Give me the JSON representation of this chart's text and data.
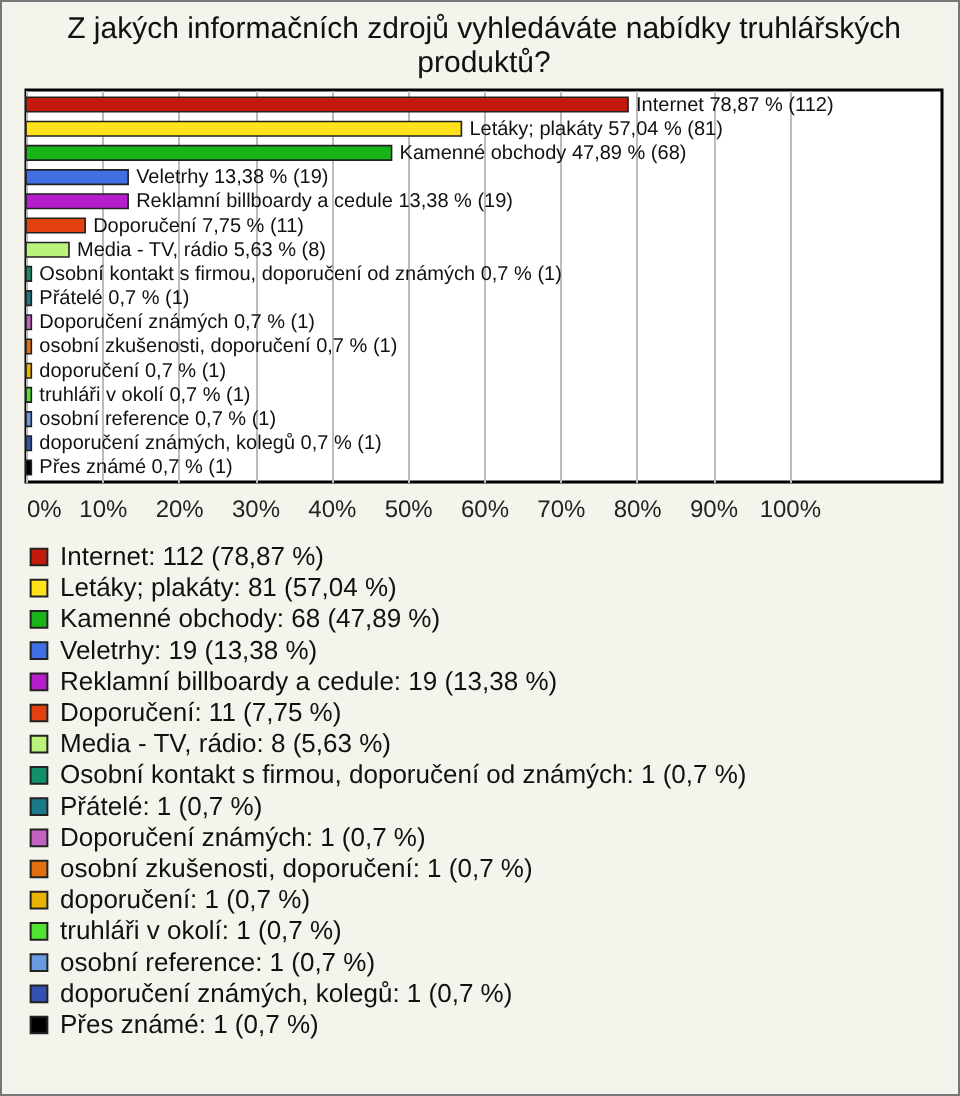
{
  "chart_data": {
    "type": "bar",
    "orientation": "horizontal",
    "title": "Z jakých informačních zdrojů vyhledáváte nabídky truhlářských produktů?",
    "categories": [
      null,
      null,
      null,
      null,
      null,
      null,
      null,
      null,
      null,
      null,
      null,
      null,
      null,
      null,
      null,
      null
    ],
    "series": [
      {
        "name": "Internet: 112 (78,87 %)",
        "color": "#c41a0e",
        "values": [
          78.87,
          null,
          null,
          null,
          null,
          null,
          null,
          null,
          null,
          null,
          null,
          null,
          null,
          null,
          null,
          null
        ],
        "value_labels": [
          "Internet 78,87 % (112)",
          null,
          null,
          null,
          null,
          null,
          null,
          null,
          null,
          null,
          null,
          null,
          null,
          null,
          null,
          null
        ]
      },
      {
        "name": "Letáky; plakáty: 81 (57,04 %)",
        "color": "#ffe21a",
        "values": [
          null,
          57.04,
          null,
          null,
          null,
          null,
          null,
          null,
          null,
          null,
          null,
          null,
          null,
          null,
          null,
          null
        ],
        "value_labels": [
          null,
          "Letáky; plakáty 57,04 % (81)",
          null,
          null,
          null,
          null,
          null,
          null,
          null,
          null,
          null,
          null,
          null,
          null,
          null,
          null
        ]
      },
      {
        "name": "Kamenné obchody: 68 (47,89 %)",
        "color": "#19b419",
        "values": [
          null,
          null,
          47.89,
          null,
          null,
          null,
          null,
          null,
          null,
          null,
          null,
          null,
          null,
          null,
          null,
          null
        ],
        "value_labels": [
          null,
          null,
          "Kamenné obchody 47,89 % (68)",
          null,
          null,
          null,
          null,
          null,
          null,
          null,
          null,
          null,
          null,
          null,
          null,
          null
        ]
      },
      {
        "name": "Veletrhy: 19 (13,38 %)",
        "color": "#3f6fe3",
        "values": [
          null,
          null,
          null,
          13.38,
          null,
          null,
          null,
          null,
          null,
          null,
          null,
          null,
          null,
          null,
          null,
          null
        ],
        "value_labels": [
          null,
          null,
          null,
          "Veletrhy 13,38 % (19)",
          null,
          null,
          null,
          null,
          null,
          null,
          null,
          null,
          null,
          null,
          null,
          null
        ]
      },
      {
        "name": "Reklamní billboardy a cedule: 19 (13,38 %)",
        "color": "#b61ecb",
        "values": [
          null,
          null,
          null,
          null,
          13.38,
          null,
          null,
          null,
          null,
          null,
          null,
          null,
          null,
          null,
          null,
          null
        ],
        "value_labels": [
          null,
          null,
          null,
          null,
          "Reklamní billboardy a cedule 13,38 % (19)",
          null,
          null,
          null,
          null,
          null,
          null,
          null,
          null,
          null,
          null,
          null
        ]
      },
      {
        "name": "Doporučení: 11 (7,75 %)",
        "color": "#e2400f",
        "values": [
          null,
          null,
          null,
          null,
          null,
          7.75,
          null,
          null,
          null,
          null,
          null,
          null,
          null,
          null,
          null,
          null
        ],
        "value_labels": [
          null,
          null,
          null,
          null,
          null,
          "Doporučení 7,75 % (11)",
          null,
          null,
          null,
          null,
          null,
          null,
          null,
          null,
          null,
          null
        ]
      },
      {
        "name": "Media - TV, rádio: 8 (5,63 %)",
        "color": "#baf27c",
        "values": [
          null,
          null,
          null,
          null,
          null,
          null,
          5.63,
          null,
          null,
          null,
          null,
          null,
          null,
          null,
          null,
          null
        ],
        "value_labels": [
          null,
          null,
          null,
          null,
          null,
          null,
          "Media - TV, rádio 5,63 % (8)",
          null,
          null,
          null,
          null,
          null,
          null,
          null,
          null,
          null
        ]
      },
      {
        "name": "Osobní kontakt s firmou, doporučení od známých: 1 (0,7 %)",
        "color": "#12906a",
        "values": [
          null,
          null,
          null,
          null,
          null,
          null,
          null,
          0.7,
          null,
          null,
          null,
          null,
          null,
          null,
          null,
          null
        ],
        "value_labels": [
          null,
          null,
          null,
          null,
          null,
          null,
          null,
          "Osobní kontakt s firmou, doporučení od známých 0,7 % (1)",
          null,
          null,
          null,
          null,
          null,
          null,
          null,
          null
        ]
      },
      {
        "name": "Přátelé: 1 (0,7 %)",
        "color": "#1a7a8a",
        "values": [
          null,
          null,
          null,
          null,
          null,
          null,
          null,
          null,
          0.7,
          null,
          null,
          null,
          null,
          null,
          null,
          null
        ],
        "value_labels": [
          null,
          null,
          null,
          null,
          null,
          null,
          null,
          null,
          "Přátelé 0,7 % (1)",
          null,
          null,
          null,
          null,
          null,
          null,
          null
        ]
      },
      {
        "name": "Doporučení známých: 1 (0,7 %)",
        "color": "#c462c4",
        "values": [
          null,
          null,
          null,
          null,
          null,
          null,
          null,
          null,
          null,
          0.7,
          null,
          null,
          null,
          null,
          null,
          null
        ],
        "value_labels": [
          null,
          null,
          null,
          null,
          null,
          null,
          null,
          null,
          null,
          "Doporučení známých 0,7 % (1)",
          null,
          null,
          null,
          null,
          null,
          null
        ]
      },
      {
        "name": "osobní zkušenosti, doporučení: 1 (0,7 %)",
        "color": "#e2700f",
        "values": [
          null,
          null,
          null,
          null,
          null,
          null,
          null,
          null,
          null,
          null,
          0.7,
          null,
          null,
          null,
          null,
          null
        ],
        "value_labels": [
          null,
          null,
          null,
          null,
          null,
          null,
          null,
          null,
          null,
          null,
          "osobní zkušenosti, doporučení 0,7 % (1)",
          null,
          null,
          null,
          null,
          null
        ]
      },
      {
        "name": " doporučení: 1 (0,7 %)",
        "color": "#e8b400",
        "values": [
          null,
          null,
          null,
          null,
          null,
          null,
          null,
          null,
          null,
          null,
          null,
          0.7,
          null,
          null,
          null,
          null
        ],
        "value_labels": [
          null,
          null,
          null,
          null,
          null,
          null,
          null,
          null,
          null,
          null,
          null,
          " doporučení 0,7 % (1)",
          null,
          null,
          null,
          null
        ]
      },
      {
        "name": "truhláři v okolí: 1 (0,7 %)",
        "color": "#52e232",
        "values": [
          null,
          null,
          null,
          null,
          null,
          null,
          null,
          null,
          null,
          null,
          null,
          null,
          0.7,
          null,
          null,
          null
        ],
        "value_labels": [
          null,
          null,
          null,
          null,
          null,
          null,
          null,
          null,
          null,
          null,
          null,
          null,
          "truhláři v okolí 0,7 % (1)",
          null,
          null,
          null
        ]
      },
      {
        "name": "osobní reference: 1 (0,7 %)",
        "color": "#6a9ae2",
        "values": [
          null,
          null,
          null,
          null,
          null,
          null,
          null,
          null,
          null,
          null,
          null,
          null,
          null,
          0.7,
          null,
          null
        ],
        "value_labels": [
          null,
          null,
          null,
          null,
          null,
          null,
          null,
          null,
          null,
          null,
          null,
          null,
          null,
          "osobní reference 0,7 % (1)",
          null,
          null
        ]
      },
      {
        "name": "doporučení známých, kolegů: 1 (0,7 %)",
        "color": "#3252b2",
        "values": [
          null,
          null,
          null,
          null,
          null,
          null,
          null,
          null,
          null,
          null,
          null,
          null,
          null,
          null,
          0.7,
          null
        ],
        "value_labels": [
          null,
          null,
          null,
          null,
          null,
          null,
          null,
          null,
          null,
          null,
          null,
          null,
          null,
          null,
          "doporučení známých, kolegů 0,7 % (1)",
          null
        ]
      },
      {
        "name": "Přes známé: 1 (0,7 %)",
        "color": "#000000",
        "values": [
          null,
          null,
          null,
          null,
          null,
          null,
          null,
          null,
          null,
          null,
          null,
          null,
          null,
          null,
          null,
          0.7
        ],
        "value_labels": [
          null,
          null,
          null,
          null,
          null,
          null,
          null,
          null,
          null,
          null,
          null,
          null,
          null,
          null,
          null,
          "Přes známé 0,7 % (1)"
        ]
      }
    ],
    "xlim": [
      0,
      120
    ],
    "xticks": [
      {
        "value": 0,
        "label": "0%"
      },
      {
        "value": 10,
        "label": "10%"
      },
      {
        "value": 20,
        "label": "20%"
      },
      {
        "value": 30,
        "label": "30%"
      },
      {
        "value": 40,
        "label": "40%"
      },
      {
        "value": 50,
        "label": "50%"
      },
      {
        "value": 60,
        "label": "60%"
      },
      {
        "value": 70,
        "label": "70%"
      },
      {
        "value": 80,
        "label": "80%"
      },
      {
        "value": 90,
        "label": "90%"
      },
      {
        "value": 100,
        "label": "100%"
      }
    ],
    "grid": "x",
    "legend": "bottom",
    "tick_labels": "x"
  }
}
